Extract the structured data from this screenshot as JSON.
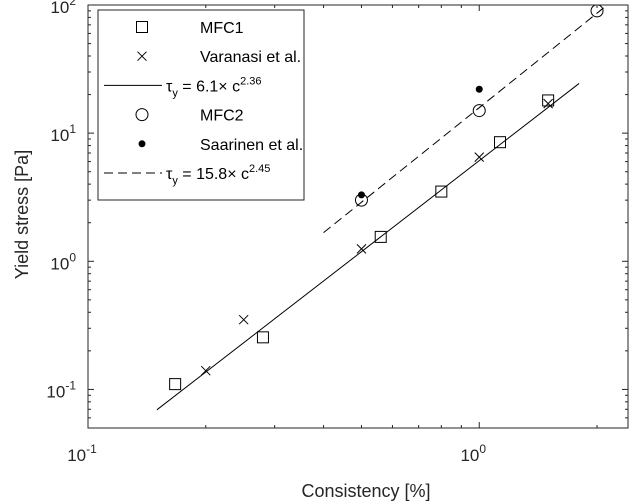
{
  "chart_data": {
    "type": "scatter",
    "xscale": "log",
    "yscale": "log",
    "xlim": [
      0.1,
      2.4
    ],
    "ylim": [
      0.05,
      100
    ],
    "xlabel": "Consistency [%]",
    "ylabel": "Yield stress [Pa]",
    "grid": false,
    "legend_position": "top-left",
    "x_ticks": [
      {
        "value": 0.1,
        "base": "10",
        "exp": "-1"
      },
      {
        "value": 1,
        "base": "10",
        "exp": "0"
      }
    ],
    "y_ticks": [
      {
        "value": 0.1,
        "base": "10",
        "exp": "-1"
      },
      {
        "value": 1,
        "base": "10",
        "exp": "0"
      },
      {
        "value": 10,
        "base": "10",
        "exp": "1"
      },
      {
        "value": 100,
        "base": "10",
        "exp": "2"
      }
    ],
    "series": [
      {
        "name": "MFC1",
        "kind": "marker",
        "marker": "square",
        "points": [
          [
            0.167,
            0.11
          ],
          [
            0.28,
            0.255
          ],
          [
            0.56,
            1.55
          ],
          [
            0.8,
            3.5
          ],
          [
            1.13,
            8.5
          ],
          [
            1.5,
            18
          ]
        ]
      },
      {
        "name": "Varanasi et al.",
        "kind": "marker",
        "marker": "x",
        "points": [
          [
            0.2,
            0.14
          ],
          [
            0.25,
            0.35
          ],
          [
            0.5,
            1.25
          ],
          [
            1.0,
            6.5
          ],
          [
            1.5,
            17
          ]
        ]
      },
      {
        "name_prefix": "τ",
        "name_sub": "y",
        "name_mid": " = 6.1× c",
        "name_sup": "2.36",
        "kind": "line",
        "dash": "solid",
        "coef": 6.1,
        "exponent": 2.36,
        "x_range": [
          0.15,
          1.8
        ]
      },
      {
        "name": "MFC2",
        "kind": "marker",
        "marker": "circle",
        "points": [
          [
            0.5,
            3.0
          ],
          [
            1.0,
            15
          ],
          [
            2.0,
            90
          ]
        ]
      },
      {
        "name": "Saarinen et al.",
        "kind": "marker",
        "marker": "dot",
        "points": [
          [
            0.5,
            3.3
          ],
          [
            1.0,
            22
          ]
        ]
      },
      {
        "name_prefix": "τ",
        "name_sub": "y",
        "name_mid": " = 15.8× c",
        "name_sup": "2.45",
        "kind": "line",
        "dash": "dashed",
        "coef": 15.8,
        "exponent": 2.45,
        "x_range": [
          0.4,
          2.4
        ]
      }
    ]
  }
}
